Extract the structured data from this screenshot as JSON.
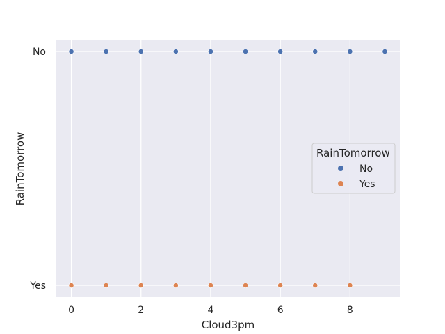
{
  "chart_data": {
    "type": "scatter",
    "title": "",
    "xlabel": "Cloud3pm",
    "ylabel": "RainTomorrow",
    "xlim": [
      -0.45,
      9.45
    ],
    "x_ticks": [
      0,
      2,
      4,
      6,
      8
    ],
    "y_categories": [
      "No",
      "Yes"
    ],
    "grid": true,
    "legend_position": "center-right",
    "legend_title": "RainTomorrow",
    "series": [
      {
        "name": "No",
        "color": "#4c72b0",
        "points": [
          {
            "x": 0,
            "y": "No"
          },
          {
            "x": 1,
            "y": "No"
          },
          {
            "x": 2,
            "y": "No"
          },
          {
            "x": 3,
            "y": "No"
          },
          {
            "x": 4,
            "y": "No"
          },
          {
            "x": 5,
            "y": "No"
          },
          {
            "x": 6,
            "y": "No"
          },
          {
            "x": 7,
            "y": "No"
          },
          {
            "x": 8,
            "y": "No"
          },
          {
            "x": 9,
            "y": "No"
          }
        ]
      },
      {
        "name": "Yes",
        "color": "#dd8452",
        "points": [
          {
            "x": 0,
            "y": "Yes"
          },
          {
            "x": 1,
            "y": "Yes"
          },
          {
            "x": 2,
            "y": "Yes"
          },
          {
            "x": 3,
            "y": "Yes"
          },
          {
            "x": 4,
            "y": "Yes"
          },
          {
            "x": 5,
            "y": "Yes"
          },
          {
            "x": 6,
            "y": "Yes"
          },
          {
            "x": 7,
            "y": "Yes"
          },
          {
            "x": 8,
            "y": "Yes"
          }
        ]
      }
    ]
  }
}
